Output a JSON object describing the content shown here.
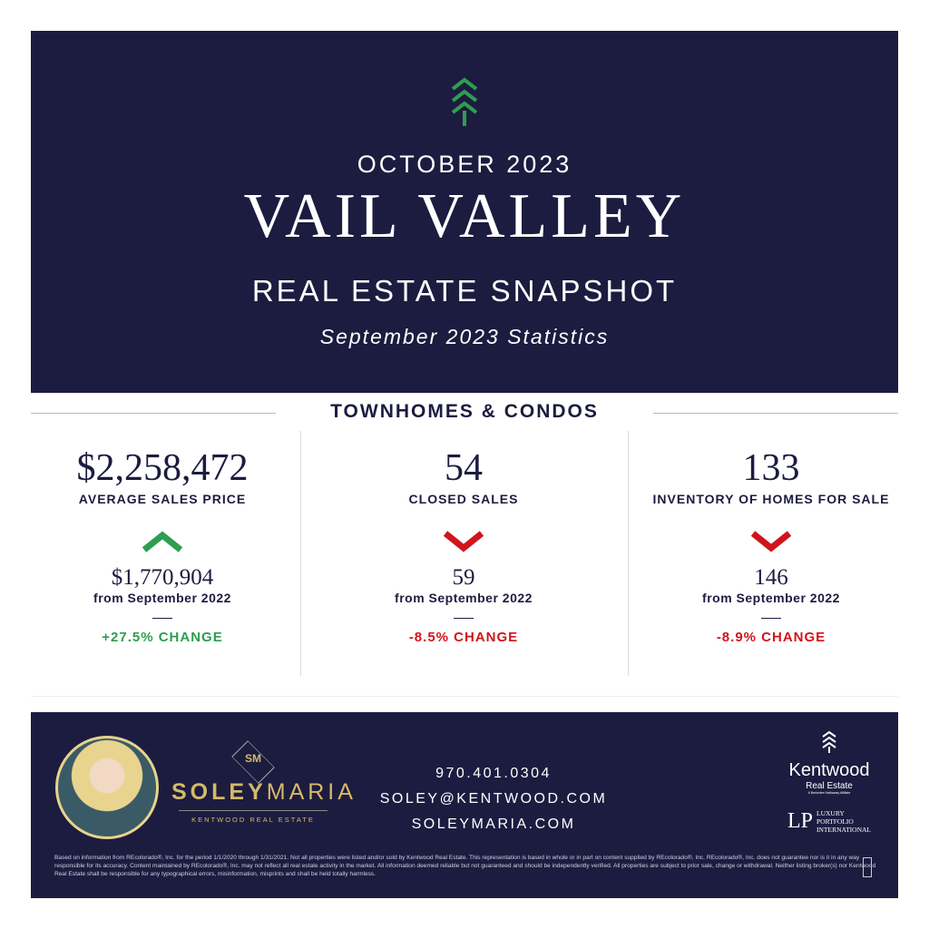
{
  "header": {
    "month": "OCTOBER 2023",
    "title": "VAIL VALLEY",
    "subtitle": "REAL ESTATE SNAPSHOT",
    "stats_period": "September 2023 Statistics",
    "icon": "tree-chevron-icon"
  },
  "section": {
    "title": "TOWNHOMES & CONDOS"
  },
  "metrics": [
    {
      "value": "$2,258,472",
      "label": "AVERAGE SALES PRICE",
      "direction": "up",
      "previous": "$1,770,904",
      "from": "from September 2022",
      "change": "+27.5% CHANGE"
    },
    {
      "value": "54",
      "label": "CLOSED SALES",
      "direction": "down",
      "previous": "59",
      "from": "from September 2022",
      "change": "-8.5% CHANGE"
    },
    {
      "value": "133",
      "label": "INVENTORY OF HOMES FOR SALE",
      "direction": "down",
      "previous": "146",
      "from": "from September 2022",
      "change": "-8.9% CHANGE"
    }
  ],
  "colors": {
    "navy": "#1c1c40",
    "up": "#2e9e4f",
    "down": "#d0151c",
    "gold": "#d6b968"
  },
  "footer": {
    "monogram": "SM",
    "brand_first": "SOLEY",
    "brand_second": "MARIA",
    "brand_tag": "KENTWOOD REAL ESTATE",
    "phone": "970.401.0304",
    "email": "SOLEY@KENTWOOD.COM",
    "website": "SOLEYMARIA.COM",
    "kentwood": "Kentwood",
    "kentwood_sub": "Real Estate",
    "kentwood_affil": "A Berkshire Hathaway Affiliate",
    "lpi": "LUXURY PORTFOLIO INTERNATIONAL",
    "disclaimer": "Based on information from REcolorado®, Inc. for the period 1/1/2020 through 1/31/2021. Not all properties were listed and/or sold by Kentwood Real Estate. This representation is based in whole or in part on content supplied by REcolorado®, Inc. REcolorado®, Inc. does not guarantee nor is it in any way responsible for its accuracy. Content maintained by REcolorado®, Inc. may not reflect all real estate activity in the market. All information deemed reliable but not guaranteed and should be independently verified. All properties are subject to prior sale, change or withdrawal. Neither listing broker(s) nor Kentwood Real Estate shall be responsible for any typographical errors, misinformation, misprints and shall be held totally harmless."
  }
}
